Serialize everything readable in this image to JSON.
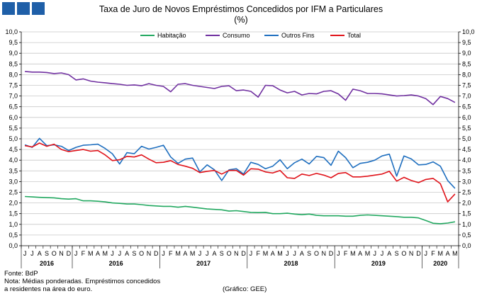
{
  "header": {
    "title": "Taxa de Juro de Novos Empréstimos Concedidos por IFM a Particulares",
    "subtitle": "(%)"
  },
  "footer": {
    "source": "Fonte: BdP",
    "note_line1": "Nota: Médias ponderadas.  Empréstimos concedidos",
    "note_line2": "a residentes na área do euro.",
    "credit": "(Gráfico:  GEE)"
  },
  "colors": {
    "Habitação": "#22a860",
    "Consumo": "#7030a0",
    "Outros Fins": "#1f6fbf",
    "Total": "#e0131a",
    "axis": "#000000",
    "grid": "#c8c8c8"
  },
  "chart_data": {
    "type": "line",
    "title": "Taxa de Juro de Novos Empréstimos Concedidos por IFM a Particulares",
    "subtitle": "(%)",
    "legend_position": "top-center",
    "grid": true,
    "ylim": [
      0,
      10
    ],
    "ytick_labels": [
      "0,0",
      "0,5",
      "1,0",
      "1,5",
      "2,0",
      "2,5",
      "3,0",
      "3,5",
      "4,0",
      "4,5",
      "5,0",
      "5,5",
      "6,0",
      "6,5",
      "7,0",
      "7,5",
      "8,0",
      "8,5",
      "9,0",
      "9,5",
      "10,0"
    ],
    "x": [
      "J",
      "J",
      "A",
      "S",
      "O",
      "N",
      "D",
      "J",
      "F",
      "M",
      "A",
      "M",
      "J",
      "J",
      "A",
      "S",
      "O",
      "N",
      "D",
      "J",
      "F",
      "M",
      "A",
      "M",
      "J",
      "J",
      "A",
      "S",
      "O",
      "N",
      "D",
      "J",
      "F",
      "M",
      "A",
      "M",
      "J",
      "J",
      "A",
      "S",
      "O",
      "N",
      "D",
      "J",
      "F",
      "M",
      "A",
      "M",
      "J",
      "J",
      "A",
      "S",
      "O",
      "N",
      "D",
      "J",
      "F",
      "M",
      "A",
      "M"
    ],
    "year_groups": [
      {
        "label": "2016",
        "start": 0,
        "end": 6
      },
      {
        "label": "2016",
        "start": 7,
        "end": 18
      },
      {
        "label": "2017",
        "start": 19,
        "end": 30
      },
      {
        "label": "2018",
        "start": 31,
        "end": 42
      },
      {
        "label": "2019",
        "start": 43,
        "end": 54
      },
      {
        "label": "2020",
        "start": 55,
        "end": 59
      }
    ],
    "series": [
      {
        "name": "Habitação",
        "values": [
          2.3,
          2.28,
          2.26,
          2.25,
          2.24,
          2.2,
          2.18,
          2.2,
          2.1,
          2.1,
          2.08,
          2.05,
          2.0,
          1.98,
          1.95,
          1.95,
          1.92,
          1.88,
          1.86,
          1.84,
          1.84,
          1.8,
          1.84,
          1.8,
          1.76,
          1.72,
          1.7,
          1.68,
          1.62,
          1.64,
          1.6,
          1.56,
          1.55,
          1.56,
          1.5,
          1.5,
          1.52,
          1.48,
          1.45,
          1.48,
          1.42,
          1.4,
          1.4,
          1.4,
          1.38,
          1.38,
          1.42,
          1.44,
          1.42,
          1.4,
          1.38,
          1.36,
          1.33,
          1.33,
          1.3,
          1.18,
          1.05,
          1.03,
          1.06,
          1.12
        ]
      },
      {
        "name": "Consumo",
        "values": [
          8.15,
          8.12,
          8.12,
          8.1,
          8.05,
          8.08,
          8.0,
          7.75,
          7.8,
          7.7,
          7.65,
          7.62,
          7.58,
          7.55,
          7.5,
          7.52,
          7.48,
          7.58,
          7.5,
          7.45,
          7.2,
          7.55,
          7.58,
          7.5,
          7.45,
          7.4,
          7.35,
          7.45,
          7.48,
          7.25,
          7.28,
          7.22,
          6.95,
          7.5,
          7.48,
          7.28,
          7.15,
          7.22,
          7.05,
          7.12,
          7.1,
          7.22,
          7.25,
          7.1,
          6.8,
          7.32,
          7.25,
          7.12,
          7.12,
          7.1,
          7.05,
          7.0,
          7.02,
          7.05,
          7.0,
          6.88,
          6.6,
          6.98,
          6.88,
          6.7
        ]
      },
      {
        "name": "Outros Fins",
        "values": [
          4.72,
          4.6,
          5.02,
          4.68,
          4.72,
          4.65,
          4.45,
          4.6,
          4.7,
          4.72,
          4.75,
          4.55,
          4.3,
          3.82,
          4.35,
          4.3,
          4.65,
          4.52,
          4.6,
          4.7,
          4.15,
          3.85,
          4.05,
          4.1,
          3.45,
          3.78,
          3.55,
          3.05,
          3.55,
          3.6,
          3.35,
          3.9,
          3.8,
          3.6,
          3.72,
          4.02,
          3.6,
          3.88,
          4.05,
          3.82,
          4.18,
          4.12,
          3.76,
          4.42,
          4.12,
          3.65,
          3.85,
          3.9,
          4.0,
          4.2,
          4.28,
          3.25,
          4.2,
          4.06,
          3.78,
          3.8,
          3.92,
          3.72,
          3.05,
          2.68
        ]
      },
      {
        "name": "Total",
        "values": [
          4.68,
          4.62,
          4.8,
          4.65,
          4.75,
          4.5,
          4.4,
          4.45,
          4.5,
          4.42,
          4.45,
          4.25,
          3.98,
          4.02,
          4.18,
          4.15,
          4.25,
          4.05,
          3.88,
          3.9,
          3.98,
          3.8,
          3.72,
          3.62,
          3.42,
          3.48,
          3.52,
          3.35,
          3.52,
          3.52,
          3.3,
          3.6,
          3.58,
          3.45,
          3.4,
          3.52,
          3.18,
          3.15,
          3.35,
          3.28,
          3.38,
          3.3,
          3.18,
          3.38,
          3.42,
          3.22,
          3.22,
          3.25,
          3.3,
          3.35,
          3.48,
          3.02,
          3.2,
          3.05,
          2.95,
          3.1,
          3.15,
          2.9,
          2.05,
          2.42
        ]
      }
    ]
  }
}
